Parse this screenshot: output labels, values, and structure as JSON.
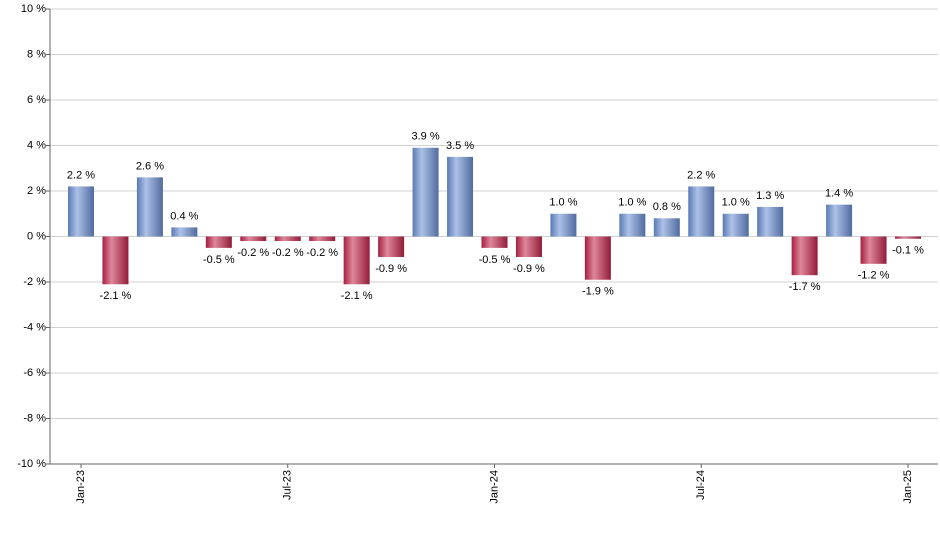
{
  "chart_data": {
    "type": "bar",
    "categories": [
      "Jan-23",
      null,
      null,
      null,
      null,
      null,
      "Jul-23",
      null,
      null,
      null,
      null,
      null,
      "Jan-24",
      null,
      null,
      null,
      null,
      null,
      "Jul-24",
      null,
      null,
      null,
      null,
      null,
      "Jan-25"
    ],
    "values": [
      2.2,
      -2.1,
      2.6,
      0.4,
      -0.5,
      -0.2,
      -0.2,
      -0.2,
      -2.1,
      -0.9,
      3.9,
      3.5,
      -0.5,
      -0.9,
      1.0,
      -1.9,
      1.0,
      0.8,
      2.2,
      1.0,
      1.3,
      -1.7,
      1.4,
      -1.2,
      -0.1
    ],
    "value_labels": [
      "2.2 %",
      "-2.1 %",
      "2.6 %",
      "0.4 %",
      "-0.5 %",
      "-0.2 %",
      "-0.2 %",
      "-0.2 %",
      "-2.1 %",
      "-0.9 %",
      "3.9 %",
      "3.5 %",
      "-0.5 %",
      "-0.9 %",
      "1.0 %",
      "-1.9 %",
      "1.0 %",
      "0.8 %",
      "2.2 %",
      "1.0 %",
      "1.3 %",
      "-1.7 %",
      "1.4 %",
      "-1.2 %",
      "-0.1 %"
    ],
    "positive_color": "#6a8fd4",
    "negative_color": "#c3254a",
    "ylim": [
      -10,
      10
    ],
    "yticks": [
      {
        "value": -10,
        "label": "-10 %"
      },
      {
        "value": -8,
        "label": "-8 %"
      },
      {
        "value": -6,
        "label": "-6 %"
      },
      {
        "value": -4,
        "label": "-4 %"
      },
      {
        "value": -2,
        "label": "-2 %"
      },
      {
        "value": 0,
        "label": "0 %"
      },
      {
        "value": 2,
        "label": "2 %"
      },
      {
        "value": 4,
        "label": "4 %"
      },
      {
        "value": 6,
        "label": "6 %"
      },
      {
        "value": 8,
        "label": "8 %"
      },
      {
        "value": 10,
        "label": "10 %"
      }
    ],
    "grid": true
  }
}
